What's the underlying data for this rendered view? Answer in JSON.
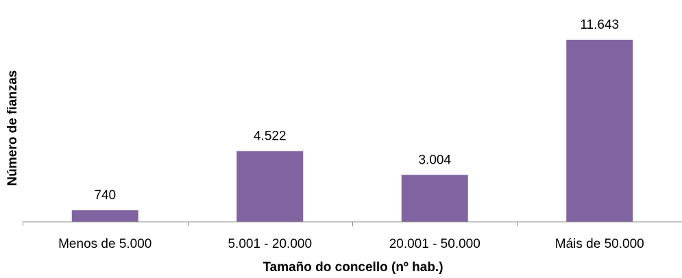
{
  "chart_data": {
    "type": "bar",
    "categories": [
      "Menos de 5.000",
      "5.001 - 20.000",
      "20.001 - 50.000",
      "Máis de 50.000"
    ],
    "values": [
      740,
      4522,
      3004,
      11643
    ],
    "value_labels": [
      "740",
      "4.522",
      "3.004",
      "11.643"
    ],
    "title": "",
    "xlabel": "Tamaño do concello (nº hab.)",
    "ylabel": "Número de fianzas",
    "ylim": [
      0,
      12000
    ],
    "grid": false,
    "legend": "none",
    "colors": {
      "bar": "#8064a2",
      "axis": "#8c8c8c"
    }
  }
}
